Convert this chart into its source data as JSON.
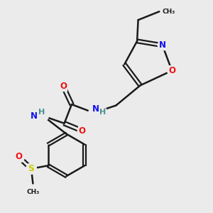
{
  "bg_color": "#ebebeb",
  "bond_color": "#1a1a1a",
  "atom_colors": {
    "N": "#1010ee",
    "O": "#ee1010",
    "S": "#cccc00",
    "C": "#1a1a1a",
    "H": "#4a9090"
  }
}
